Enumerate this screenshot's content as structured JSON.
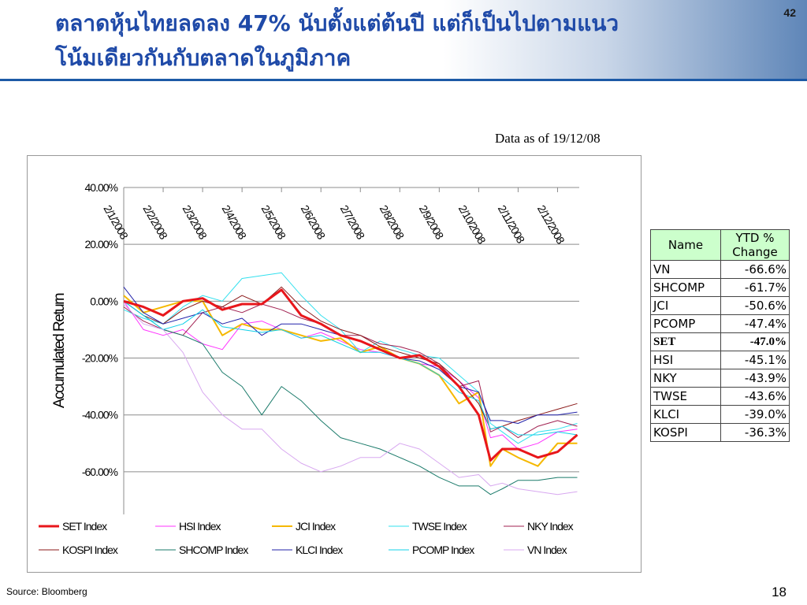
{
  "slide": {
    "title": "ตลาดหุ้นไทยลดลง 47% นับตั้งแต่ต้นปี แต่ก็เป็นไปตามแนวโน้มเดียวกันกับตลาดในภูมิภาค",
    "page_code": "42",
    "as_of": "Data as of 19/12/08",
    "source": "Source: Bloomberg",
    "slide_number": "18"
  },
  "chart_data": {
    "type": "line",
    "title": "",
    "xlabel": "",
    "ylabel": "Accumulated Return",
    "y_ticks": [
      "40.00%",
      "20.00%",
      "0.00%",
      "-20.00%",
      "-40.00%",
      "-60.00%"
    ],
    "y_tick_values": [
      40,
      20,
      0,
      -20,
      -40,
      -60
    ],
    "ylim": [
      -75,
      40
    ],
    "x_ticks": [
      "2/1/2008",
      "2/2/2008",
      "2/3/2008",
      "2/4/2008",
      "2/5/2008",
      "2/6/2008",
      "2/7/2008",
      "2/8/2008",
      "2/9/2008",
      "2/10/2008",
      "2/11/2008",
      "2/12/2008"
    ],
    "x_tick_positions": [
      0,
      1,
      2,
      3,
      4,
      5,
      6,
      7,
      8,
      9,
      10,
      11
    ],
    "xlim": [
      0,
      11.55
    ],
    "grid": true,
    "legend_position": "bottom",
    "series": [
      {
        "name": "SET Index",
        "color": "#e8161b",
        "width": 3,
        "x": [
          0,
          0.5,
          1,
          1.5,
          2,
          2.5,
          3,
          3.5,
          4,
          4.5,
          5,
          5.5,
          6,
          6.5,
          7,
          7.5,
          8,
          8.5,
          9,
          9.3,
          9.6,
          10,
          10.5,
          11,
          11.5
        ],
        "values": [
          0,
          -2,
          -5,
          0,
          1,
          -3,
          -1,
          -1,
          4,
          -5,
          -8,
          -12,
          -14,
          -17,
          -20,
          -19,
          -23,
          -30,
          -40,
          -56,
          -52,
          -52,
          -55,
          -53,
          -47
        ]
      },
      {
        "name": "HSI Index",
        "color": "#ff33ff",
        "width": 1,
        "x": [
          0,
          0.5,
          1,
          1.5,
          2,
          2.5,
          3,
          3.5,
          4,
          4.5,
          5,
          5.5,
          6,
          6.5,
          7,
          7.5,
          8,
          8.5,
          9,
          9.3,
          9.6,
          10,
          10.5,
          11,
          11.5
        ],
        "values": [
          0,
          -10,
          -12,
          -10,
          -15,
          -17,
          -8,
          -7,
          -10,
          -13,
          -11,
          -14,
          -17,
          -18,
          -20,
          -22,
          -23,
          -28,
          -34,
          -48,
          -47,
          -52,
          -50,
          -46,
          -45
        ]
      },
      {
        "name": "JCI Index",
        "color": "#f5b800",
        "width": 2,
        "x": [
          0,
          0.5,
          1,
          1.5,
          2,
          2.5,
          3,
          3.5,
          4,
          4.5,
          5,
          5.5,
          6,
          6.5,
          7,
          7.5,
          8,
          8.5,
          9,
          9.3,
          9.6,
          10,
          10.5,
          11,
          11.5
        ],
        "values": [
          2,
          -4,
          -2,
          0,
          0,
          -12,
          -8,
          -10,
          -10,
          -12,
          -14,
          -13,
          -18,
          -16,
          -20,
          -22,
          -26,
          -36,
          -32,
          -58,
          -52,
          -55,
          -58,
          -50,
          -50
        ]
      },
      {
        "name": "TWSE Index",
        "color": "#33e0ee",
        "width": 1,
        "x": [
          0,
          0.5,
          1,
          1.5,
          2,
          2.5,
          3,
          3.5,
          4,
          4.5,
          5,
          5.5,
          6,
          6.5,
          7,
          7.5,
          8,
          8.5,
          9,
          9.3,
          9.6,
          10,
          10.5,
          11,
          11.5
        ],
        "values": [
          -3,
          -6,
          -8,
          -2,
          2,
          0,
          8,
          9,
          10,
          2,
          -5,
          -10,
          -18,
          -14,
          -17,
          -19,
          -20,
          -26,
          -32,
          -43,
          -46,
          -50,
          -46,
          -45,
          -43
        ]
      },
      {
        "name": "NKY Index",
        "color": "#a02050",
        "width": 1,
        "x": [
          0,
          0.5,
          1,
          1.5,
          2,
          2.5,
          3,
          3.5,
          4,
          4.5,
          5,
          5.5,
          6,
          6.5,
          7,
          7.5,
          8,
          8.5,
          9,
          9.3,
          9.6,
          10,
          10.5,
          11,
          11.5
        ],
        "values": [
          -2,
          -7,
          -10,
          -12,
          -4,
          -2,
          -4,
          -1,
          -3,
          -6,
          -8,
          -12,
          -12,
          -15,
          -16,
          -18,
          -22,
          -30,
          -28,
          -46,
          -44,
          -48,
          -44,
          -42,
          -44
        ]
      },
      {
        "name": "KOSPI Index",
        "color": "#8b1a1a",
        "width": 1,
        "x": [
          0,
          0.5,
          1,
          1.5,
          2,
          2.5,
          3,
          3.5,
          4,
          4.5,
          5,
          5.5,
          6,
          6.5,
          7,
          7.5,
          8,
          8.5,
          9,
          9.3,
          9.6,
          10,
          10.5,
          11,
          11.5
        ],
        "values": [
          0,
          -5,
          -8,
          -3,
          0,
          -2,
          2,
          -1,
          5,
          -2,
          -7,
          -10,
          -12,
          -16,
          -18,
          -20,
          -22,
          -28,
          -36,
          -45,
          -44,
          -42,
          -40,
          -38,
          -36
        ]
      },
      {
        "name": "SHCOMP Index",
        "color": "#1a7a6a",
        "width": 1,
        "x": [
          0,
          0.5,
          1,
          1.5,
          2,
          2.5,
          3,
          3.5,
          4,
          4.5,
          5,
          5.5,
          6,
          6.5,
          7,
          7.5,
          8,
          8.5,
          9,
          9.3,
          9.6,
          10,
          10.5,
          11,
          11.5
        ],
        "values": [
          0,
          -5,
          -10,
          -12,
          -15,
          -25,
          -30,
          -40,
          -30,
          -35,
          -42,
          -48,
          -50,
          -52,
          -55,
          -58,
          -62,
          -65,
          -65,
          -68,
          -66,
          -63,
          -63,
          -62,
          -62
        ]
      },
      {
        "name": "KLCI Index",
        "color": "#2222aa",
        "width": 1,
        "x": [
          0,
          0.5,
          1,
          1.5,
          2,
          2.5,
          3,
          3.5,
          4,
          4.5,
          5,
          5.5,
          6,
          6.5,
          7,
          7.5,
          8,
          8.5,
          9,
          9.3,
          9.6,
          10,
          10.5,
          11,
          11.5
        ],
        "values": [
          5,
          -4,
          -8,
          -6,
          -4,
          -8,
          -6,
          -12,
          -8,
          -8,
          -10,
          -12,
          -14,
          -17,
          -20,
          -21,
          -24,
          -30,
          -32,
          -42,
          -42,
          -43,
          -40,
          -40,
          -39
        ]
      },
      {
        "name": "PCOMP Index",
        "color": "#10d0e8",
        "width": 1,
        "x": [
          0,
          0.5,
          1,
          1.5,
          2,
          2.5,
          3,
          3.5,
          4,
          4.5,
          5,
          5.5,
          6,
          6.5,
          7,
          7.5,
          8,
          8.5,
          9,
          9.3,
          9.6,
          10,
          10.5,
          11,
          11.5
        ],
        "values": [
          0,
          -5,
          -10,
          -8,
          -3,
          -9,
          -10,
          -11,
          -10,
          -13,
          -12,
          -15,
          -18,
          -18,
          -20,
          -22,
          -26,
          -32,
          -35,
          -45,
          -44,
          -47,
          -47,
          -46,
          -47
        ]
      },
      {
        "name": "VN Index",
        "color": "#d8a8f0",
        "width": 1,
        "x": [
          0,
          0.5,
          1,
          1.5,
          2,
          2.5,
          3,
          3.5,
          4,
          4.5,
          5,
          5.5,
          6,
          6.5,
          7,
          7.5,
          8,
          8.5,
          9,
          9.3,
          9.6,
          10,
          10.5,
          11,
          11.5
        ],
        "values": [
          -1,
          -8,
          -10,
          -18,
          -32,
          -40,
          -45,
          -45,
          -52,
          -57,
          -60,
          -58,
          -55,
          -55,
          -50,
          -52,
          -57,
          -62,
          -61,
          -65,
          -64,
          -66,
          -67,
          -68,
          -67
        ]
      }
    ]
  },
  "ytd_table": {
    "headers": [
      "Name",
      "YTD % Change"
    ],
    "rows": [
      {
        "name": "VN",
        "value": "-66.6%",
        "bold": false
      },
      {
        "name": "SHCOMP",
        "value": "-61.7%",
        "bold": false
      },
      {
        "name": "JCI",
        "value": "-50.6%",
        "bold": false
      },
      {
        "name": "PCOMP",
        "value": "-47.4%",
        "bold": false
      },
      {
        "name": "SET",
        "value": "-47.0%",
        "bold": true
      },
      {
        "name": "HSI",
        "value": "-45.1%",
        "bold": false
      },
      {
        "name": "NKY",
        "value": "-43.9%",
        "bold": false
      },
      {
        "name": "TWSE",
        "value": "-43.6%",
        "bold": false
      },
      {
        "name": "KLCI",
        "value": "-39.0%",
        "bold": false
      },
      {
        "name": "KOSPI",
        "value": "-36.3%",
        "bold": false
      }
    ]
  }
}
